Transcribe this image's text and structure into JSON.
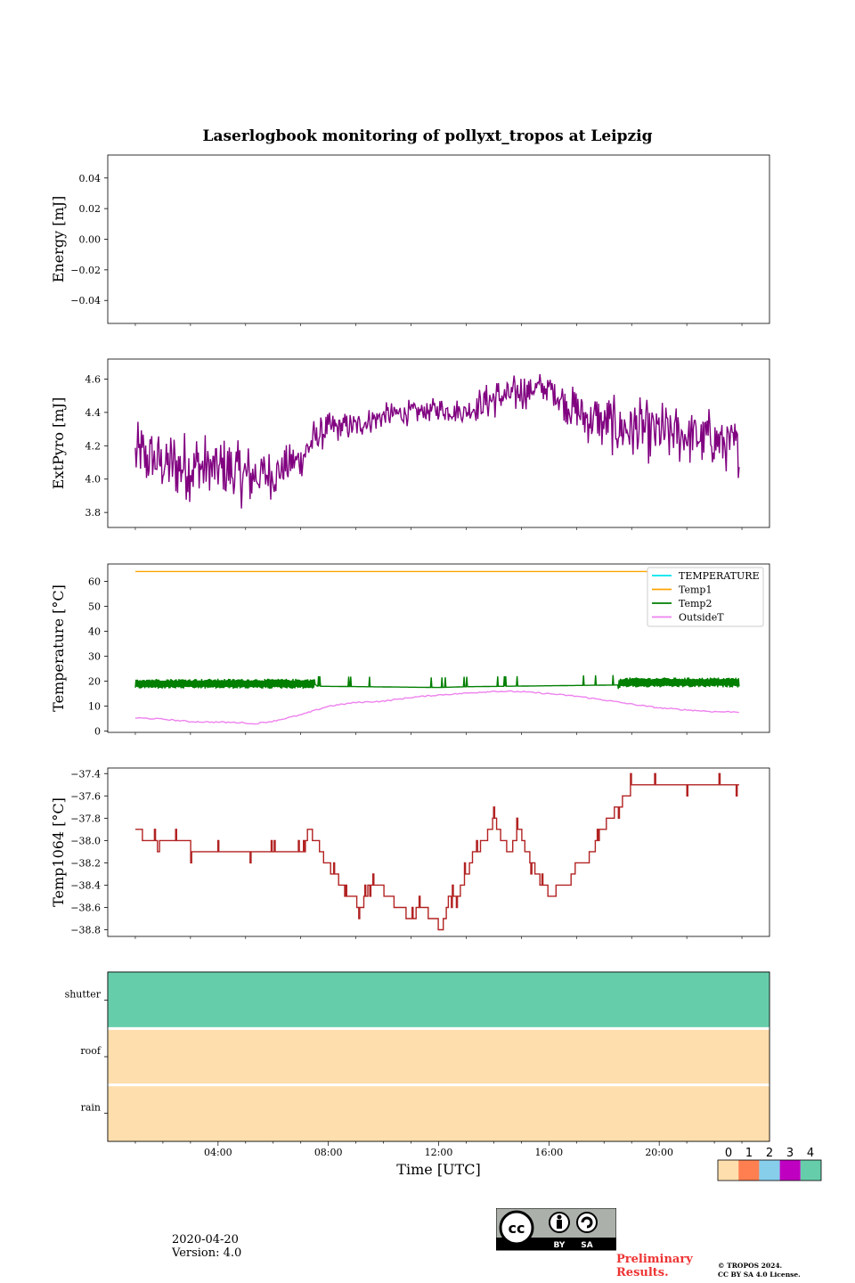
{
  "figure": {
    "title": "Laserlogbook monitoring of pollyxt_tropos at Leipzig",
    "date": "2020-04-20",
    "version": "Version: 4.0",
    "preliminary": [
      "Preliminary",
      "Results."
    ],
    "copyright": [
      "© TROPOS 2024.",
      "CC BY SA 4.0 License."
    ],
    "license_badge": {
      "label_by": "BY",
      "label_sa": "SA"
    }
  },
  "chart_data": [
    {
      "type": "line",
      "id": "energy",
      "ylabel": "Energy [mJ]",
      "ylim": [
        -0.055,
        0.055
      ],
      "yticks": [
        -0.04,
        -0.02,
        0.0,
        0.02,
        0.04
      ],
      "ytick_labels": [
        "−0.04",
        "−0.02",
        "0.00",
        "0.02",
        "0.04"
      ],
      "series": []
    },
    {
      "type": "line",
      "id": "extpyro",
      "ylabel": "ExtPyro [mJ]",
      "ylim": [
        3.71,
        4.72
      ],
      "yticks": [
        3.8,
        4.0,
        4.2,
        4.4,
        4.6
      ],
      "ytick_labels": [
        "3.8",
        "4.0",
        "4.2",
        "4.4",
        "4.6"
      ],
      "series": [
        {
          "name": "ExtPyro",
          "color": "#800080",
          "x_hours": [
            1.0,
            2.0,
            3.0,
            4.0,
            5.0,
            6.0,
            7.0,
            7.5,
            8.0,
            9.0,
            10.0,
            11.0,
            12.0,
            13.0,
            13.5,
            14.0,
            15.0,
            15.5,
            16.0,
            17.0,
            18.0,
            19.0,
            20.0,
            21.0,
            22.0,
            22.9
          ],
          "base": [
            4.15,
            4.1,
            4.08,
            4.05,
            4.02,
            4.03,
            4.12,
            4.25,
            4.3,
            4.32,
            4.38,
            4.4,
            4.42,
            4.4,
            4.45,
            4.48,
            4.52,
            4.55,
            4.55,
            4.4,
            4.33,
            4.3,
            4.28,
            4.26,
            4.25,
            4.18
          ],
          "spread": [
            0.2,
            0.2,
            0.22,
            0.22,
            0.2,
            0.15,
            0.12,
            0.12,
            0.1,
            0.08,
            0.08,
            0.08,
            0.07,
            0.08,
            0.1,
            0.12,
            0.12,
            0.1,
            0.08,
            0.15,
            0.18,
            0.2,
            0.2,
            0.18,
            0.18,
            0.18
          ]
        }
      ]
    },
    {
      "type": "line",
      "id": "temperature",
      "ylabel": "Temperature [°C]",
      "ylim": [
        -0.5,
        67
      ],
      "yticks": [
        0,
        10,
        20,
        30,
        40,
        50,
        60
      ],
      "ytick_labels": [
        "0",
        "10",
        "20",
        "30",
        "40",
        "50",
        "60"
      ],
      "legend_position": "upper-right",
      "series": [
        {
          "name": "TEMPERATURE",
          "color": "#00e5ee",
          "x_hours": [],
          "values": []
        },
        {
          "name": "Temp1",
          "color": "#ffa500",
          "x_hours": [
            1.0,
            22.9
          ],
          "values": [
            64.0,
            64.0
          ]
        },
        {
          "name": "Temp2",
          "color": "#007f00",
          "x_hours": [
            1.0,
            7.5,
            7.6,
            12.0,
            13.0,
            18.5,
            18.6,
            22.9
          ],
          "values": [
            19.0,
            19.0,
            18.0,
            17.5,
            17.8,
            18.5,
            19.5,
            19.5
          ],
          "oscillating_until_hour": 7.5,
          "oscillating_from_hour": 18.5,
          "amplitude": 2.0
        },
        {
          "name": "OutsideT",
          "color": "#ee82ee",
          "x_hours": [
            1.0,
            2.0,
            3.0,
            4.0,
            5.0,
            5.2,
            6.0,
            7.0,
            8.0,
            9.0,
            10.0,
            11.0,
            12.0,
            13.0,
            14.0,
            15.0,
            16.0,
            17.0,
            18.0,
            19.0,
            20.0,
            21.0,
            22.0,
            22.9
          ],
          "values": [
            5.3,
            4.8,
            3.8,
            3.6,
            3.4,
            2.8,
            4.0,
            6.5,
            10.0,
            11.5,
            12.0,
            13.5,
            14.5,
            15.2,
            16.0,
            15.8,
            15.0,
            14.0,
            12.5,
            10.8,
            9.3,
            8.5,
            7.8,
            7.7
          ]
        }
      ]
    },
    {
      "type": "line",
      "id": "temp1064",
      "ylabel": "Temp1064 [°C]",
      "ylim": [
        -38.86,
        -37.35
      ],
      "yticks": [
        -38.8,
        -38.6,
        -38.4,
        -38.2,
        -38.0,
        -37.8,
        -37.6,
        -37.4
      ],
      "ytick_labels": [
        "−38.8",
        "−38.6",
        "−38.4",
        "−38.2",
        "−38.0",
        "−37.8",
        "−37.6",
        "−37.4"
      ],
      "series": [
        {
          "name": "Temp1064",
          "color": "#b22222",
          "x_hours": [
            1.0,
            1.5,
            2.5,
            3.5,
            4.5,
            5.5,
            6.5,
            7.0,
            7.3,
            7.6,
            7.9,
            8.2,
            8.5,
            8.8,
            9.2,
            9.5,
            9.8,
            10.2,
            10.6,
            11.0,
            11.4,
            11.8,
            12.1,
            12.4,
            12.7,
            13.0,
            13.3,
            13.7,
            14.0,
            14.3,
            14.6,
            14.9,
            15.2,
            15.5,
            15.8,
            16.1,
            16.4,
            16.7,
            17.0,
            17.3,
            17.6,
            17.9,
            18.2,
            18.5,
            18.8,
            19.1,
            19.4,
            19.7,
            20.0,
            20.5,
            21.0,
            21.5,
            22.0,
            22.9
          ],
          "values": [
            -37.9,
            -38.0,
            -38.0,
            -38.1,
            -38.1,
            -38.1,
            -38.1,
            -38.1,
            -37.9,
            -38.0,
            -38.2,
            -38.3,
            -38.4,
            -38.5,
            -38.6,
            -38.4,
            -38.4,
            -38.5,
            -38.6,
            -38.7,
            -38.6,
            -38.7,
            -38.8,
            -38.5,
            -38.5,
            -38.3,
            -38.1,
            -38.0,
            -37.8,
            -38.0,
            -38.1,
            -37.9,
            -38.1,
            -38.3,
            -38.4,
            -38.5,
            -38.4,
            -38.4,
            -38.2,
            -38.2,
            -38.1,
            -37.9,
            -37.8,
            -37.7,
            -37.6,
            -37.5,
            -37.5,
            -37.5,
            -37.5,
            -37.5,
            -37.5,
            -37.5,
            -37.5,
            -37.5
          ]
        }
      ]
    },
    {
      "type": "heatmap",
      "id": "status",
      "rows": [
        "shutter",
        "roof",
        "rain"
      ],
      "row_values": [
        4,
        0,
        0
      ],
      "xlabel": "Time [UTC]",
      "xlim_hours": [
        0,
        24
      ],
      "xticks_hours": [
        4,
        8,
        12,
        16,
        20
      ],
      "xtick_labels": [
        "04:00",
        "08:00",
        "12:00",
        "16:00",
        "20:00"
      ],
      "colorbar": {
        "labels": [
          "0",
          "1",
          "2",
          "3",
          "4"
        ],
        "colors": [
          "#ffdead",
          "#ff7f50",
          "#87ceeb",
          "#c000c0",
          "#66cdaa"
        ]
      }
    }
  ]
}
